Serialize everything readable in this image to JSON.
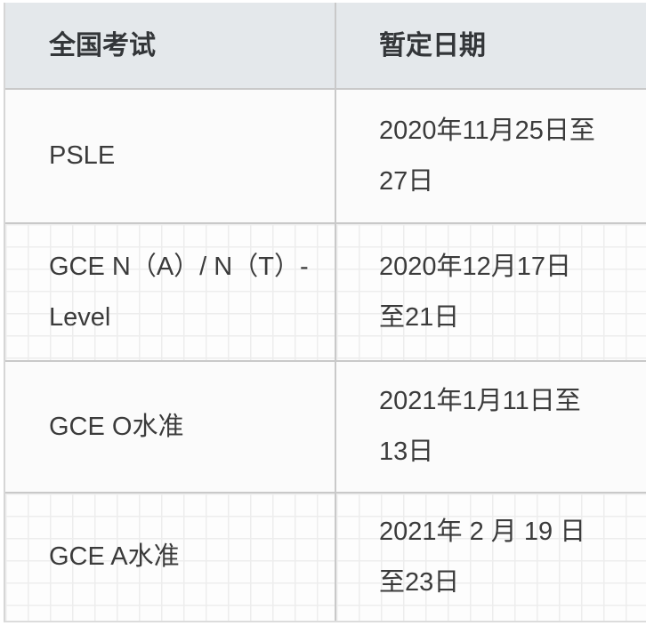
{
  "table": {
    "columns": [
      {
        "label": "全国考试"
      },
      {
        "label": "暂定日期"
      }
    ],
    "rows": [
      {
        "exam": "PSLE",
        "date": "2020年11月25日至27日"
      },
      {
        "exam": "GCE N（A）/ N（T）-Level",
        "date": "2020年12月17日至21日"
      },
      {
        "exam": "GCE O水准",
        "date": "2021年1月11日至13日"
      },
      {
        "exam": "GCE A水准",
        "date": "2021年 2 月 19 日至23日"
      }
    ],
    "colors": {
      "header_bg": "#e4e8eb",
      "border": "#c9c9c9",
      "text": "#3b3b3b",
      "plain_row_bg": "#fbfbfb",
      "textured_row_bg": "#fdfdfd",
      "texture_grid_line": "#ededed"
    }
  }
}
